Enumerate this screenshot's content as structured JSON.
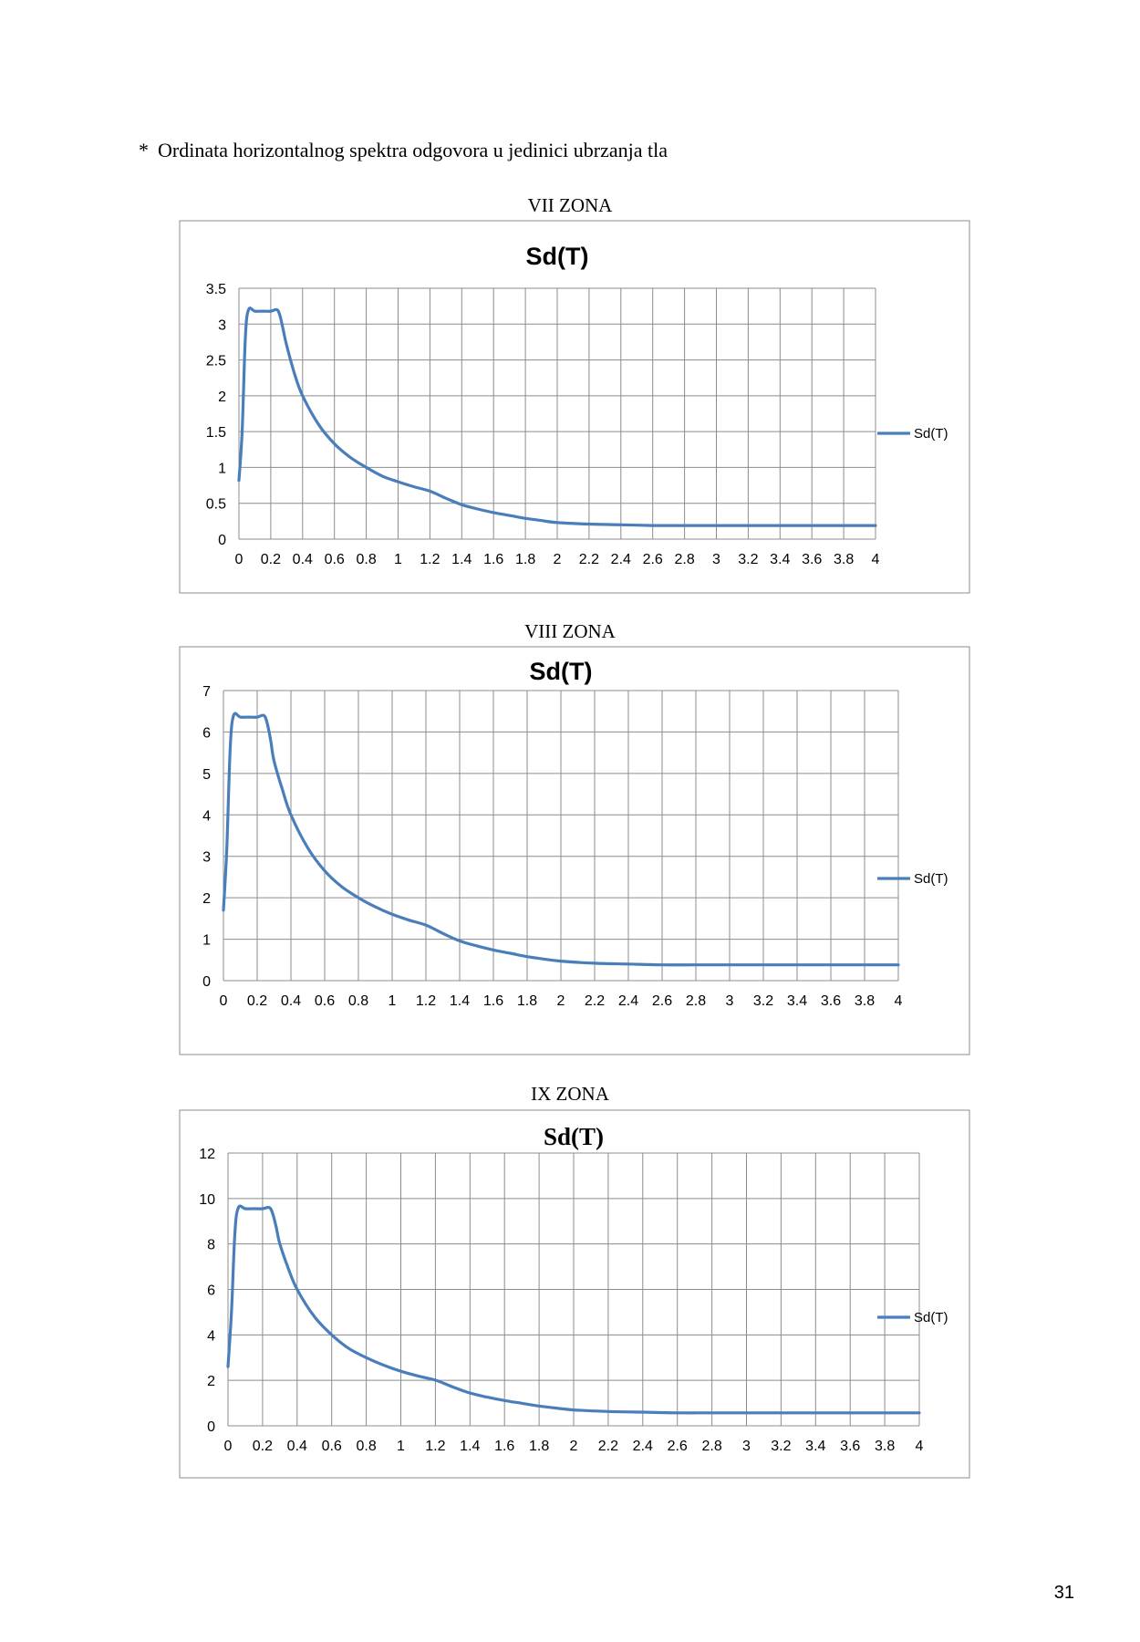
{
  "heading": {
    "bullet": "*",
    "text": "Ordinata horizontalnog spektra odgovora u jedinici ubrzanja tla"
  },
  "page_number": "31",
  "chart_data": [
    {
      "type": "line",
      "zone_label": "VII ZONA",
      "title": "Sd(T)",
      "xlabel": "",
      "ylabel": "",
      "xlim": [
        0,
        4
      ],
      "ylim": [
        0,
        3.5
      ],
      "x_ticks": [
        "0",
        "0.2",
        "0.4",
        "0.6",
        "0.8",
        "1",
        "1.2",
        "1.4",
        "1.6",
        "1.8",
        "2",
        "2.2",
        "2.4",
        "2.6",
        "2.8",
        "3",
        "3.2",
        "3.4",
        "3.6",
        "3.8",
        "4"
      ],
      "y_ticks": [
        "0",
        "0.5",
        "1",
        "1.5",
        "2",
        "2.5",
        "3",
        "3.5"
      ],
      "grid": true,
      "legend": "right",
      "color": "#4a7ebb",
      "series": [
        {
          "name": "Sd(T)",
          "x": [
            0,
            0.02,
            0.04,
            0.06,
            0.1,
            0.15,
            0.2,
            0.24,
            0.26,
            0.28,
            0.3,
            0.35,
            0.4,
            0.5,
            0.6,
            0.7,
            0.8,
            0.9,
            1.0,
            1.1,
            1.2,
            1.3,
            1.4,
            1.5,
            1.6,
            1.7,
            1.8,
            1.9,
            2.0,
            2.2,
            2.4,
            2.6,
            2.8,
            3.0,
            3.2,
            3.4,
            3.6,
            3.8,
            4.0
          ],
          "y": [
            0.82,
            1.5,
            2.8,
            3.2,
            3.18,
            3.18,
            3.18,
            3.2,
            3.1,
            2.9,
            2.7,
            2.3,
            2.0,
            1.6,
            1.33,
            1.14,
            1.0,
            0.88,
            0.8,
            0.73,
            0.67,
            0.57,
            0.48,
            0.42,
            0.37,
            0.33,
            0.29,
            0.26,
            0.23,
            0.21,
            0.2,
            0.19,
            0.19,
            0.19,
            0.19,
            0.19,
            0.19,
            0.19,
            0.19
          ]
        }
      ]
    },
    {
      "type": "line",
      "zone_label": "VIII ZONA",
      "title": "Sd(T)",
      "xlabel": "",
      "ylabel": "",
      "xlim": [
        0,
        4
      ],
      "ylim": [
        0,
        7
      ],
      "x_ticks": [
        "0",
        "0.2",
        "0.4",
        "0.6",
        "0.8",
        "1",
        "1.2",
        "1.4",
        "1.6",
        "1.8",
        "2",
        "2.2",
        "2.4",
        "2.6",
        "2.8",
        "3",
        "3.2",
        "3.4",
        "3.6",
        "3.8",
        "4"
      ],
      "y_ticks": [
        "0",
        "1",
        "2",
        "3",
        "4",
        "5",
        "6",
        "7"
      ],
      "grid": true,
      "legend": "right",
      "color": "#4a7ebb",
      "series": [
        {
          "name": "Sd(T)",
          "x": [
            0,
            0.02,
            0.04,
            0.06,
            0.1,
            0.15,
            0.2,
            0.24,
            0.26,
            0.28,
            0.3,
            0.35,
            0.4,
            0.5,
            0.6,
            0.7,
            0.8,
            0.9,
            1.0,
            1.1,
            1.2,
            1.3,
            1.4,
            1.5,
            1.6,
            1.7,
            1.8,
            1.9,
            2.0,
            2.2,
            2.4,
            2.6,
            2.8,
            3.0,
            3.2,
            3.4,
            3.6,
            3.8,
            4.0
          ],
          "y": [
            1.7,
            3.2,
            5.6,
            6.4,
            6.36,
            6.36,
            6.36,
            6.4,
            6.2,
            5.8,
            5.3,
            4.6,
            4.0,
            3.2,
            2.65,
            2.27,
            2.0,
            1.78,
            1.6,
            1.46,
            1.34,
            1.14,
            0.96,
            0.84,
            0.74,
            0.66,
            0.58,
            0.52,
            0.47,
            0.42,
            0.4,
            0.38,
            0.38,
            0.38,
            0.38,
            0.38,
            0.38,
            0.38,
            0.38
          ]
        }
      ]
    },
    {
      "type": "line",
      "zone_label": "IX ZONA",
      "title": "Sd(T)",
      "xlabel": "",
      "ylabel": "",
      "xlim": [
        0,
        4
      ],
      "ylim": [
        0,
        12
      ],
      "x_ticks": [
        "0",
        "0.2",
        "0.4",
        "0.6",
        "0.8",
        "1",
        "1.2",
        "1.4",
        "1.6",
        "1.8",
        "2",
        "2.2",
        "2.4",
        "2.6",
        "2.8",
        "3",
        "3.2",
        "3.4",
        "3.6",
        "3.8",
        "4"
      ],
      "y_ticks": [
        "0",
        "2",
        "4",
        "6",
        "8",
        "10",
        "12"
      ],
      "grid": true,
      "legend": "right",
      "color": "#4a7ebb",
      "series": [
        {
          "name": "Sd(T)",
          "x": [
            0,
            0.02,
            0.04,
            0.06,
            0.1,
            0.15,
            0.2,
            0.24,
            0.26,
            0.28,
            0.3,
            0.35,
            0.4,
            0.5,
            0.6,
            0.7,
            0.8,
            0.9,
            1.0,
            1.1,
            1.2,
            1.3,
            1.4,
            1.5,
            1.6,
            1.7,
            1.8,
            1.9,
            2.0,
            2.2,
            2.4,
            2.6,
            2.8,
            3.0,
            3.2,
            3.4,
            3.6,
            3.8,
            4.0
          ],
          "y": [
            2.6,
            5.0,
            8.5,
            9.6,
            9.55,
            9.55,
            9.55,
            9.6,
            9.3,
            8.7,
            8.0,
            6.9,
            6.0,
            4.8,
            4.0,
            3.4,
            3.0,
            2.67,
            2.4,
            2.19,
            2.01,
            1.71,
            1.44,
            1.26,
            1.11,
            0.99,
            0.87,
            0.78,
            0.7,
            0.63,
            0.6,
            0.57,
            0.57,
            0.57,
            0.57,
            0.57,
            0.57,
            0.57,
            0.57
          ]
        }
      ]
    }
  ]
}
